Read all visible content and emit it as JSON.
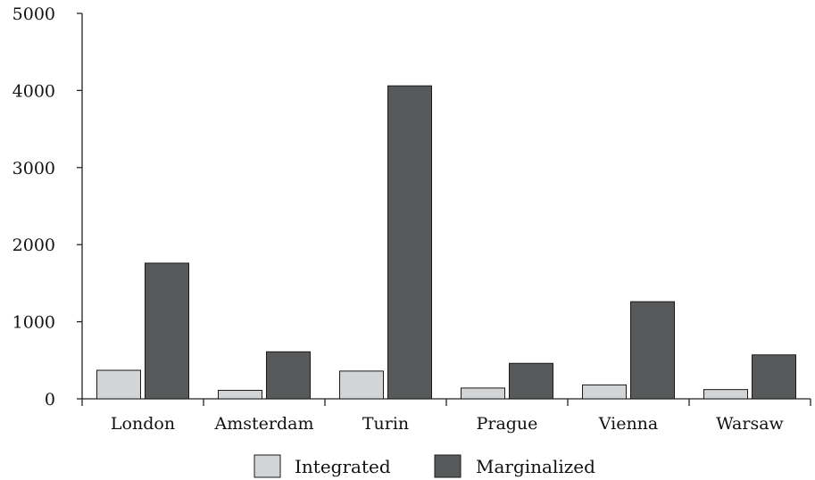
{
  "chart_data": {
    "type": "bar",
    "categories": [
      "London",
      "Amsterdam",
      "Turin",
      "Prague",
      "Vienna",
      "Warsaw"
    ],
    "series": [
      {
        "name": "Integrated",
        "values": [
          370,
          110,
          360,
          140,
          180,
          120
        ],
        "color": "#d3d4d6"
      },
      {
        "name": "Marginalized",
        "values": [
          1760,
          610,
          4060,
          460,
          1260,
          570
        ],
        "color": "#58595b"
      }
    ],
    "y_ticks": [
      0,
      1000,
      2000,
      3000,
      4000,
      5000
    ],
    "ylim": [
      0,
      5000
    ],
    "grid": false,
    "legend_position": "bottom-center",
    "title": "",
    "xlabel": "",
    "ylabel": ""
  }
}
